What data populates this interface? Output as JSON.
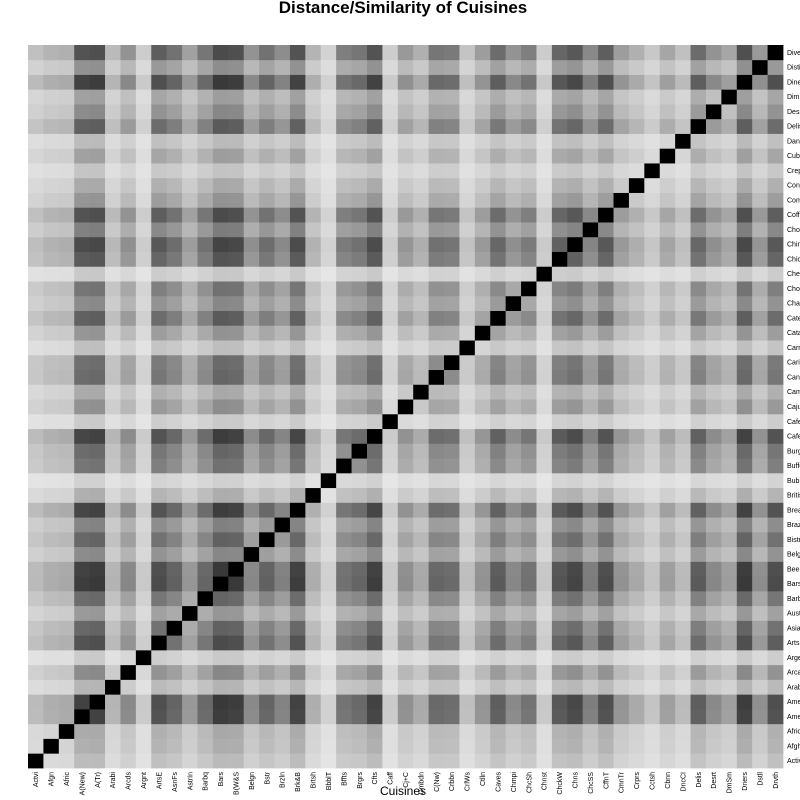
{
  "chart_data": {
    "type": "heatmap",
    "title": "Distance/Similarity of Cuisines",
    "xlabel": "Cuisines",
    "ylabel": "",
    "x_tick_labels": [
      "Actvi",
      "Afgn",
      "Afric",
      "A(New)",
      "A(Tr)",
      "Arabi",
      "Arcds",
      "Argnt",
      "ArtsE",
      "AsnFs",
      "AstrIn",
      "Barbq",
      "Bars",
      "B(W&S",
      "Belgn",
      "Bstr",
      "Brzln",
      "Brk&B",
      "Brtsh",
      "BbblT",
      "Bffts",
      "Brgrs",
      "Cfts",
      "Caff",
      "Cj+C",
      "Cmbdn",
      "C(Nw)",
      "Crbbn",
      "CrlWs",
      "Ctlln",
      "Caves",
      "Chmpi",
      "ChcSh",
      "Chnst",
      "ChckW",
      "Chns",
      "ChcSS",
      "CffnT",
      "CmnTr",
      "Crprs",
      "Cctsh",
      "Cbnn",
      "DncCI",
      "Delis",
      "Desrt",
      "DmSm",
      "Dners",
      "Dstll",
      "Drvth"
    ],
    "y_tick_labels": [
      "Active Life",
      "Afghan",
      "African",
      "American (New)",
      "American (Traditional)",
      "Arabian",
      "Arcades",
      "Argentine",
      "Arts & Entertainment",
      "Asian Fusion",
      "Australian",
      "Barbeque",
      "Bars",
      "Beer, Wine & Spirits",
      "Belgian",
      "Bistros",
      "Brazilian",
      "Breakfast & Brunch",
      "British",
      "Bubble Tea",
      "Buffets",
      "Burgers",
      "Cafes",
      "Cafeteria",
      "Cajun/Creole",
      "Cambodian",
      "Canadian (New)",
      "Caribbean",
      "Carnivals",
      "Catalan",
      "Caterers",
      "Champagne Bars",
      "Chocolatiers & Shops",
      "Cheesesteaks",
      "Chicken Wings",
      "Chinese",
      "Chocolate Shops",
      "Coffee & Tea",
      "Comfort Food",
      "Convenience Stores",
      "Creperies",
      "Cuban",
      "Dance Clubs",
      "Delis",
      "Desserts",
      "Dim Sum",
      "Diners",
      "Distilleries",
      "Dive Bars"
    ],
    "values_note": "Symmetric 49x49 distance/similarity matrix; diagonal = maximum similarity (black).",
    "diagonal_value": 1.0,
    "row_strength": [
      0.22,
      0.28,
      0.3,
      0.78,
      0.8,
      0.25,
      0.45,
      0.15,
      0.72,
      0.62,
      0.38,
      0.6,
      0.82,
      0.8,
      0.45,
      0.62,
      0.48,
      0.78,
      0.28,
      0.12,
      0.55,
      0.6,
      0.78,
      0.15,
      0.42,
      0.3,
      0.6,
      0.58,
      0.2,
      0.4,
      0.65,
      0.45,
      0.55,
      0.16,
      0.68,
      0.75,
      0.5,
      0.72,
      0.4,
      0.3,
      0.18,
      0.35,
      0.22,
      0.65,
      0.45,
      0.35,
      0.8,
      0.42,
      0.72
    ],
    "color_scale": {
      "low": "#f2f2f2",
      "high": "#000000"
    },
    "grid": false,
    "legend": "none"
  }
}
